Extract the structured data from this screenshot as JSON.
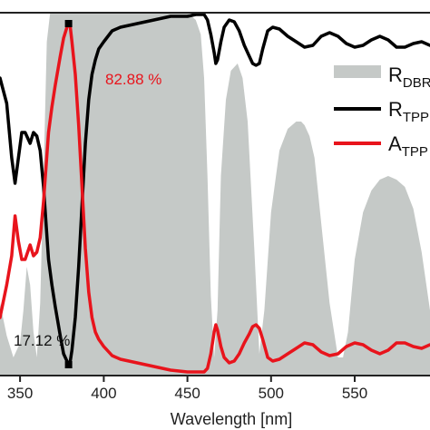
{
  "chart_data": {
    "type": "line",
    "xlabel": "Wavelength [nm]",
    "xlim": [
      338,
      595
    ],
    "ylim": [
      0,
      1
    ],
    "xticks": [
      350,
      400,
      450,
      500,
      550
    ],
    "xtick_labels": [
      "350",
      "400",
      "450",
      "500",
      "550"
    ],
    "legend": {
      "placement": "right",
      "clipped": true
    },
    "series": [
      {
        "name": "R_DBR",
        "label_main": "R",
        "label_sub": "DBR",
        "style": "area",
        "color": "#c5c9c7",
        "x": [
          338,
          342,
          346,
          350,
          352,
          354,
          356,
          358,
          360,
          362,
          364,
          366,
          368,
          440,
          450,
          455,
          458,
          460,
          462,
          464,
          466,
          468,
          470,
          473,
          476,
          480,
          483,
          486,
          490,
          493,
          496,
          500,
          505,
          510,
          515,
          518,
          520,
          523,
          526,
          530,
          535,
          540,
          543,
          546,
          550,
          555,
          560,
          565,
          570,
          575,
          580,
          585,
          590,
          595
        ],
        "y": [
          0.2,
          0.11,
          0.05,
          0.09,
          0.18,
          0.3,
          0.25,
          0.12,
          0.05,
          0.2,
          0.55,
          0.92,
          1.0,
          1.0,
          1.0,
          0.98,
          0.94,
          0.82,
          0.55,
          0.22,
          0.05,
          0.18,
          0.55,
          0.76,
          0.84,
          0.86,
          0.82,
          0.7,
          0.35,
          0.06,
          0.18,
          0.45,
          0.62,
          0.68,
          0.7,
          0.7,
          0.69,
          0.66,
          0.6,
          0.42,
          0.2,
          0.05,
          0.05,
          0.12,
          0.32,
          0.45,
          0.51,
          0.54,
          0.55,
          0.54,
          0.52,
          0.46,
          0.34,
          0.18
        ]
      },
      {
        "name": "R_TPP",
        "label_main": "R",
        "label_sub": "TPP",
        "style": "line",
        "color": "#000000",
        "x": [
          338,
          342,
          345,
          347,
          349,
          351,
          353,
          356,
          358,
          360,
          362,
          364,
          367,
          369,
          371,
          374,
          376,
          378,
          379,
          380,
          381,
          383,
          385,
          387,
          389,
          391,
          393,
          395,
          397,
          400,
          405,
          410,
          420,
          430,
          440,
          450,
          455,
          460,
          462,
          464,
          466,
          467,
          468,
          470,
          472,
          475,
          478,
          481,
          484,
          487,
          489,
          491,
          493,
          495,
          498,
          501,
          505,
          510,
          515,
          520,
          525,
          530,
          535,
          540,
          545,
          550,
          555,
          560,
          565,
          570,
          575,
          580,
          585,
          590,
          595
        ],
        "y": [
          0.82,
          0.75,
          0.6,
          0.53,
          0.6,
          0.67,
          0.67,
          0.64,
          0.67,
          0.66,
          0.62,
          0.52,
          0.32,
          0.25,
          0.19,
          0.11,
          0.06,
          0.04,
          0.03,
          0.04,
          0.07,
          0.16,
          0.3,
          0.47,
          0.64,
          0.76,
          0.83,
          0.87,
          0.9,
          0.92,
          0.95,
          0.96,
          0.97,
          0.98,
          0.99,
          0.99,
          0.995,
          0.995,
          0.98,
          0.94,
          0.89,
          0.86,
          0.87,
          0.92,
          0.96,
          0.98,
          0.975,
          0.95,
          0.91,
          0.88,
          0.86,
          0.855,
          0.86,
          0.9,
          0.95,
          0.96,
          0.955,
          0.935,
          0.92,
          0.905,
          0.91,
          0.935,
          0.945,
          0.935,
          0.915,
          0.905,
          0.91,
          0.925,
          0.935,
          0.925,
          0.905,
          0.905,
          0.915,
          0.92,
          0.91
        ]
      },
      {
        "name": "A_TPP",
        "label_main": "A",
        "label_sub": "TPP",
        "style": "line",
        "color": "#e8141c",
        "x": [
          338,
          342,
          345,
          347,
          349,
          351,
          353,
          356,
          358,
          360,
          362,
          364,
          367,
          369,
          371,
          374,
          376,
          378,
          379,
          380,
          381,
          383,
          385,
          387,
          389,
          391,
          393,
          395,
          397,
          400,
          405,
          410,
          420,
          430,
          440,
          450,
          455,
          460,
          462,
          464,
          466,
          467,
          468,
          470,
          472,
          475,
          478,
          481,
          484,
          487,
          489,
          491,
          493,
          495,
          498,
          501,
          505,
          510,
          515,
          520,
          525,
          530,
          535,
          540,
          545,
          550,
          555,
          560,
          565,
          570,
          575,
          580,
          585,
          590,
          595
        ],
        "y": [
          0.16,
          0.25,
          0.33,
          0.44,
          0.37,
          0.32,
          0.32,
          0.36,
          0.33,
          0.34,
          0.38,
          0.48,
          0.67,
          0.74,
          0.8,
          0.88,
          0.93,
          0.96,
          0.97,
          0.96,
          0.92,
          0.83,
          0.69,
          0.52,
          0.35,
          0.23,
          0.16,
          0.12,
          0.1,
          0.08,
          0.055,
          0.045,
          0.035,
          0.025,
          0.015,
          0.01,
          0.01,
          0.01,
          0.02,
          0.06,
          0.12,
          0.14,
          0.125,
          0.08,
          0.05,
          0.035,
          0.04,
          0.06,
          0.09,
          0.115,
          0.135,
          0.14,
          0.13,
          0.1,
          0.05,
          0.04,
          0.045,
          0.06,
          0.075,
          0.09,
          0.085,
          0.065,
          0.055,
          0.06,
          0.08,
          0.09,
          0.085,
          0.07,
          0.06,
          0.07,
          0.09,
          0.09,
          0.08,
          0.075,
          0.085
        ]
      }
    ],
    "markers": [
      {
        "x": 379,
        "y": 0.97,
        "color": "#000000",
        "shape": "square"
      },
      {
        "x": 379,
        "y": 0.03,
        "color": "#000000",
        "shape": "square"
      }
    ],
    "annotations": [
      {
        "text": "82.88 %",
        "color": "#e8141c"
      },
      {
        "text": "17.12 %",
        "color": "#111111"
      }
    ]
  }
}
